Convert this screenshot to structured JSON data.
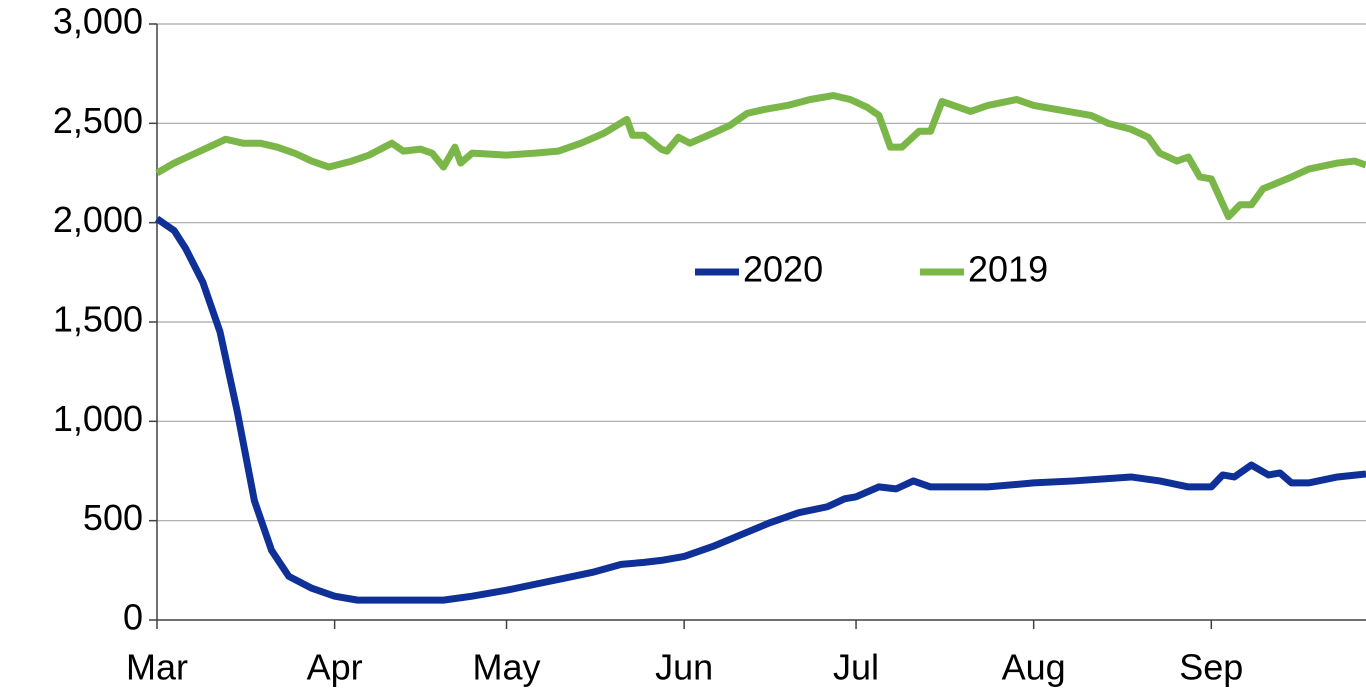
{
  "chart_data": {
    "type": "line",
    "xlim": [
      0,
      211
    ],
    "xticks": [
      {
        "value": 0,
        "label": "Mar"
      },
      {
        "value": 31,
        "label": "Apr"
      },
      {
        "value": 61,
        "label": "May"
      },
      {
        "value": 92,
        "label": "Jun"
      },
      {
        "value": 122,
        "label": "Jul"
      },
      {
        "value": 153,
        "label": "Aug"
      },
      {
        "value": 184,
        "label": "Sep"
      }
    ],
    "ylim": [
      0,
      3000
    ],
    "yticks": [
      0,
      500,
      {
        "value": 1000,
        "label": "1,000"
      },
      {
        "value": 1500,
        "label": "1,500"
      },
      {
        "value": 2000,
        "label": "2,000"
      },
      {
        "value": 2500,
        "label": "2,500"
      },
      {
        "value": 3000,
        "label": "3,000"
      }
    ],
    "grid": true,
    "series": [
      {
        "name": "2020",
        "color": "#0f3096",
        "x": [
          0,
          3,
          5,
          8,
          11,
          14,
          17,
          20,
          23,
          27,
          31,
          35,
          45,
          50,
          55,
          61,
          66,
          71,
          76,
          81,
          85,
          88,
          92,
          97,
          102,
          107,
          112,
          117,
          120,
          122,
          126,
          129,
          132,
          135,
          145,
          153,
          160,
          170,
          175,
          180,
          184,
          186,
          188,
          191,
          194,
          196,
          198,
          201,
          206,
          211
        ],
        "values": [
          2020,
          1960,
          1870,
          1700,
          1450,
          1050,
          600,
          350,
          220,
          160,
          120,
          100,
          100,
          100,
          120,
          150,
          180,
          210,
          240,
          280,
          290,
          300,
          320,
          370,
          430,
          490,
          540,
          570,
          610,
          620,
          670,
          660,
          700,
          670,
          670,
          690,
          700,
          720,
          700,
          670,
          670,
          730,
          720,
          780,
          730,
          740,
          690,
          690,
          720,
          735
        ]
      },
      {
        "name": "2019",
        "color": "#7ab648",
        "x": [
          0,
          3,
          6,
          9,
          12,
          15,
          18,
          21,
          24,
          27,
          30,
          34,
          37,
          41,
          43,
          46,
          48,
          50,
          52,
          53,
          55,
          61,
          66,
          70,
          74,
          78,
          82,
          83,
          85,
          88,
          89,
          91,
          93,
          97,
          100,
          103,
          106,
          110,
          114,
          118,
          121,
          124,
          126,
          128,
          130,
          133,
          135,
          137,
          139,
          142,
          145,
          150,
          153,
          157,
          163,
          166,
          170,
          173,
          175,
          178,
          180,
          182,
          184,
          187,
          189,
          191,
          193,
          198,
          201,
          206,
          209,
          211
        ],
        "values": [
          2250,
          2300,
          2340,
          2380,
          2420,
          2400,
          2400,
          2380,
          2350,
          2310,
          2280,
          2310,
          2340,
          2400,
          2360,
          2370,
          2350,
          2280,
          2380,
          2300,
          2350,
          2340,
          2350,
          2360,
          2400,
          2450,
          2520,
          2440,
          2440,
          2370,
          2360,
          2430,
          2400,
          2450,
          2490,
          2550,
          2570,
          2590,
          2620,
          2640,
          2620,
          2580,
          2540,
          2380,
          2380,
          2460,
          2460,
          2610,
          2590,
          2560,
          2590,
          2620,
          2590,
          2570,
          2540,
          2500,
          2470,
          2430,
          2350,
          2310,
          2330,
          2230,
          2220,
          2030,
          2090,
          2090,
          2170,
          2230,
          2270,
          2300,
          2310,
          2290
        ]
      }
    ]
  }
}
